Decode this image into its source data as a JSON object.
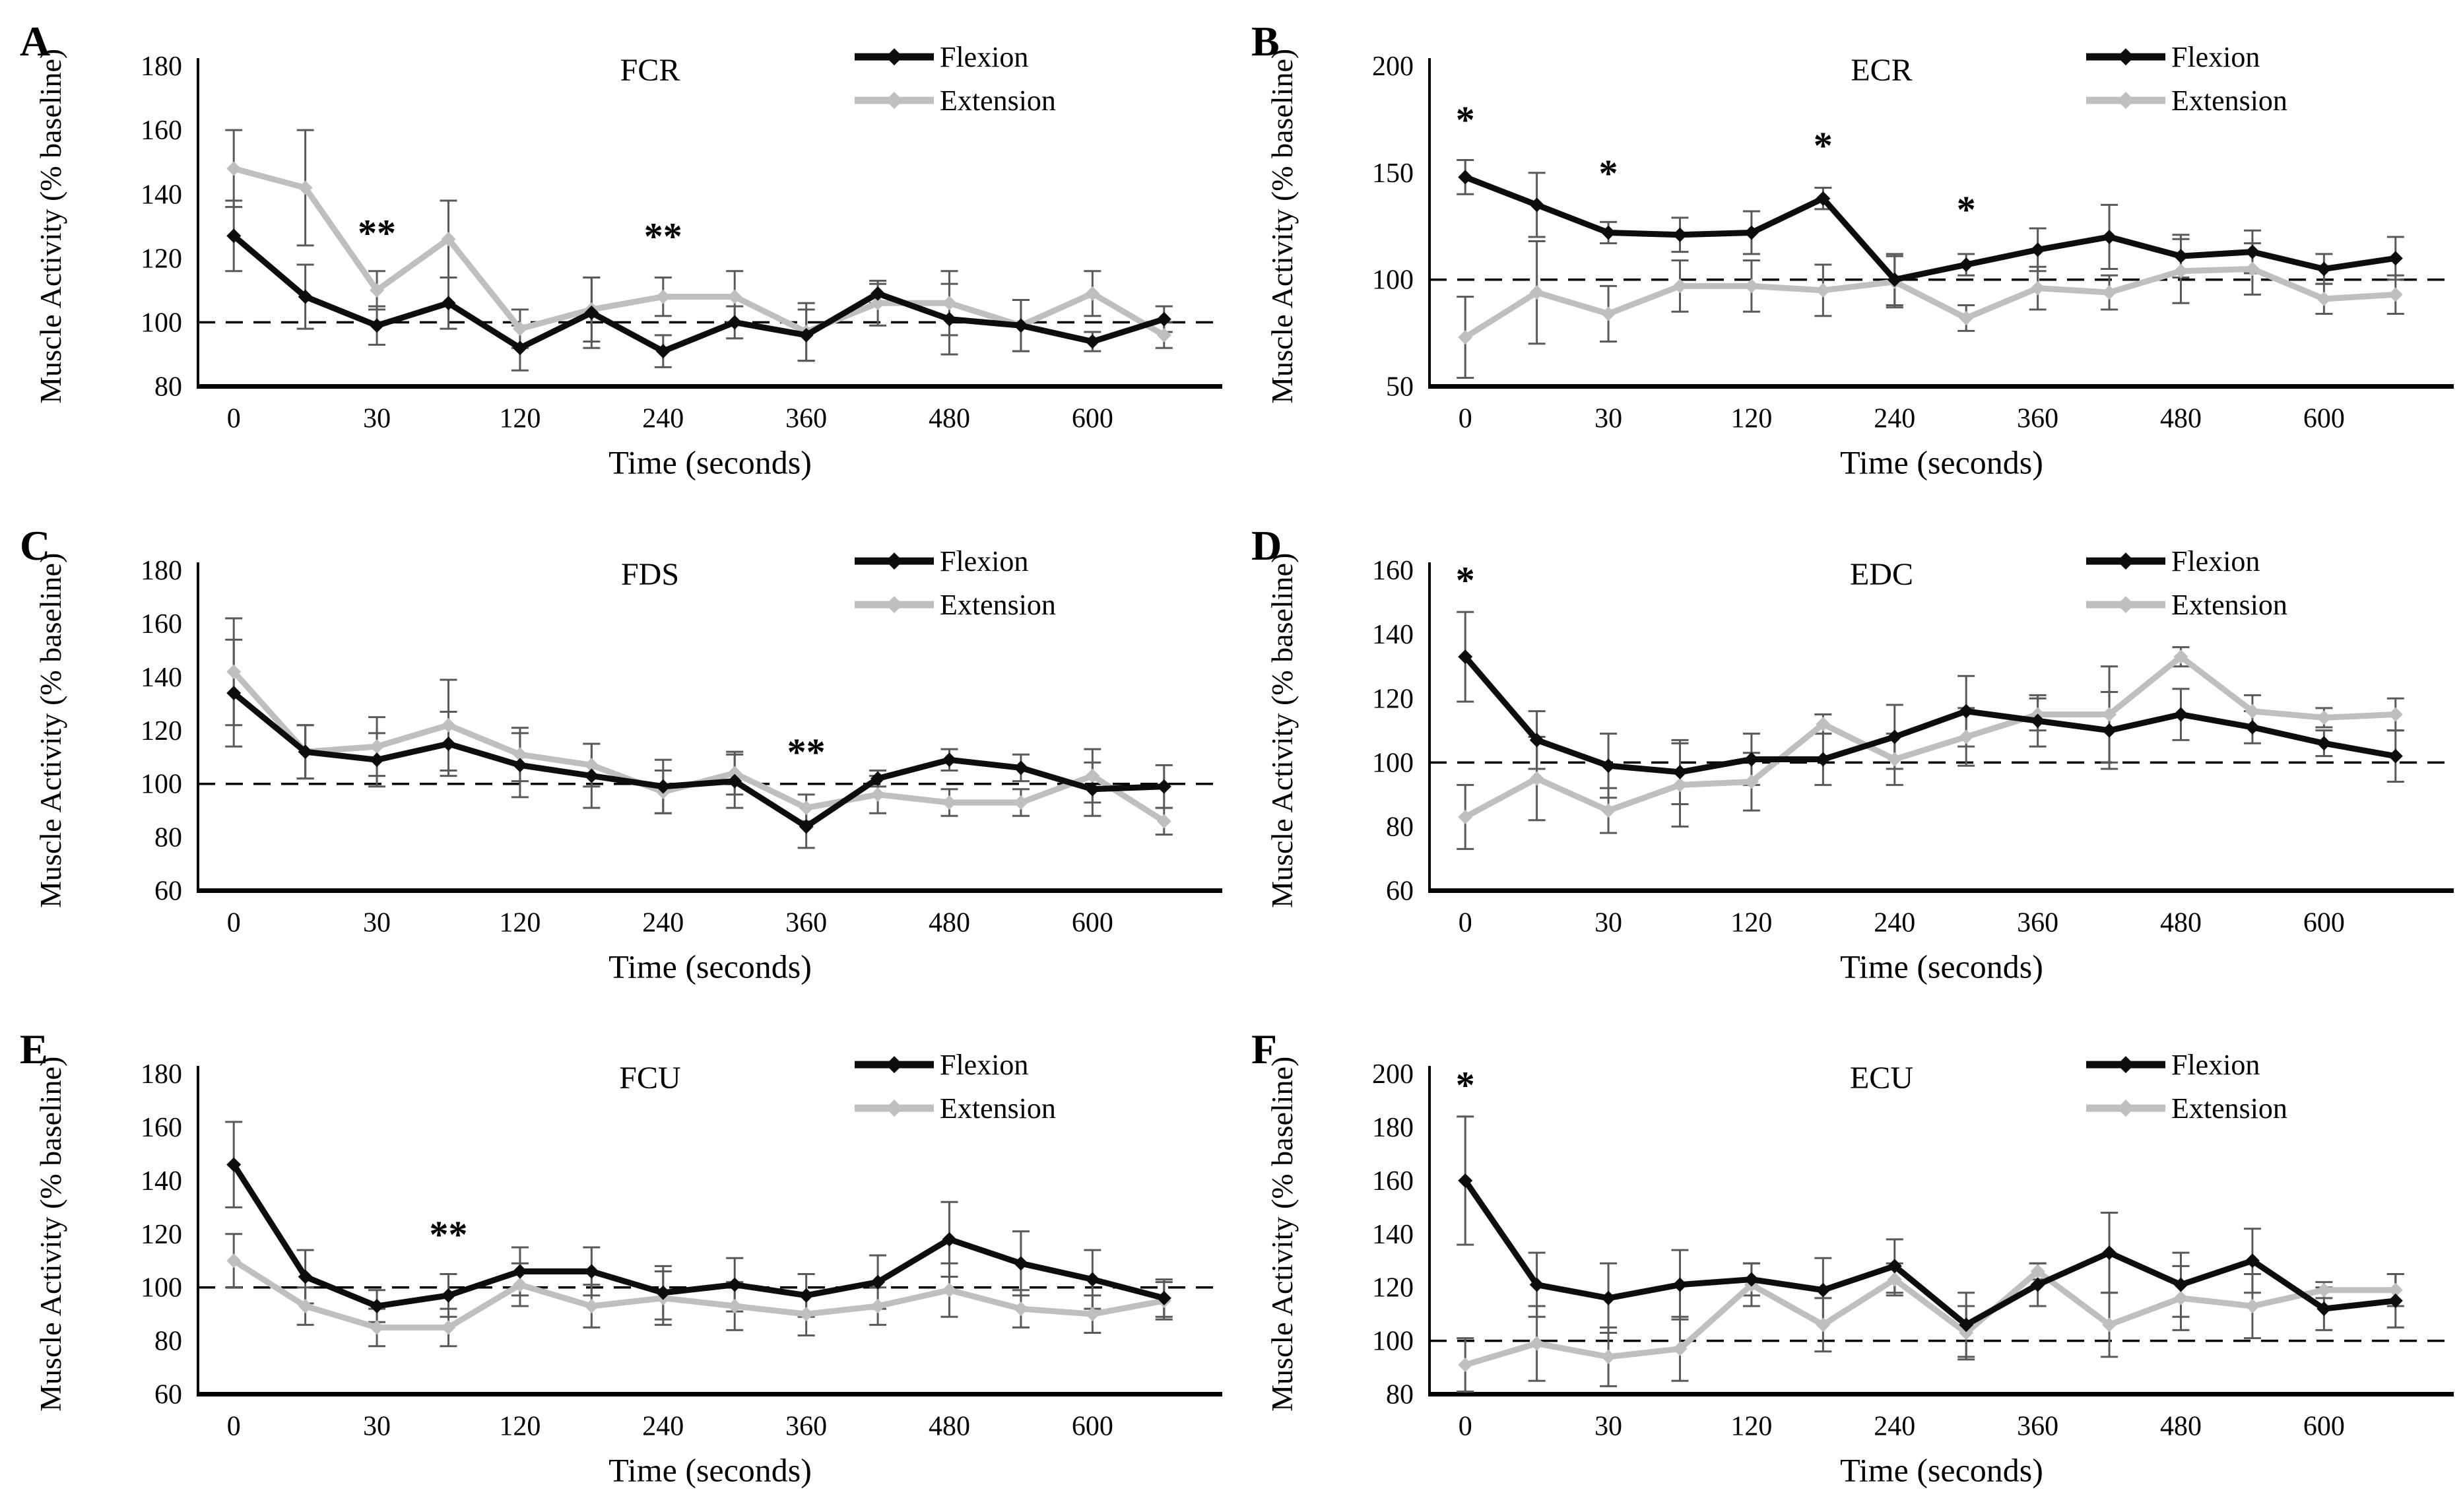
{
  "figure": {
    "background": "#ffffff",
    "legend": {
      "entries": [
        "Flexion",
        "Extension"
      ],
      "position": "top-right"
    },
    "colors": {
      "flexion": "#0d0d0d",
      "extension": "#bfbfbf",
      "error_bar": "#595959",
      "axis": "#000000",
      "baseline_dash": "#000000"
    },
    "axis": {
      "xlabel": "Time (seconds)",
      "ylabel": "Muscle Activity (% baseline)",
      "xtick_labels": [
        "0",
        "30",
        "120",
        "240",
        "360",
        "480",
        "600"
      ],
      "xtick_indices": [
        0,
        2,
        4,
        6,
        8,
        10,
        12
      ]
    }
  },
  "chart_data": [
    {
      "type": "line",
      "panel": "A",
      "title": "FCR",
      "xlabel": "Time (seconds)",
      "ylabel": "Muscle Activity (% baseline)",
      "x": [
        0,
        15,
        30,
        60,
        120,
        180,
        240,
        300,
        360,
        420,
        480,
        540,
        600,
        660
      ],
      "ylim": [
        80,
        180
      ],
      "yticks": [
        80,
        100,
        120,
        140,
        160,
        180
      ],
      "baseline": 100,
      "grid": false,
      "series": [
        {
          "name": "Extension",
          "values": [
            148,
            142,
            110,
            126,
            98,
            104,
            108,
            108,
            97,
            106,
            106,
            99,
            109,
            96
          ],
          "errors": [
            12,
            18,
            6,
            12,
            6,
            10,
            6,
            8,
            9,
            7,
            10,
            8,
            7,
            4
          ]
        },
        {
          "name": "Flexion",
          "values": [
            127,
            108,
            99,
            106,
            92,
            103,
            91,
            100,
            96,
            109,
            101,
            99,
            94,
            101
          ],
          "errors": [
            11,
            10,
            6,
            8,
            7,
            11,
            5,
            5,
            8,
            3,
            11,
            8,
            3,
            4
          ]
        }
      ],
      "annotations": [
        {
          "text": "**",
          "index": 2,
          "y": 128
        },
        {
          "text": "**",
          "index": 6,
          "y": 127
        }
      ]
    },
    {
      "type": "line",
      "panel": "B",
      "title": "ECR",
      "xlabel": "Time (seconds)",
      "ylabel": "Muscle Activity (% baseline)",
      "x": [
        0,
        15,
        30,
        60,
        120,
        180,
        240,
        300,
        360,
        420,
        480,
        540,
        600,
        660
      ],
      "ylim": [
        50,
        200
      ],
      "yticks": [
        50,
        100,
        150,
        200
      ],
      "baseline": 100,
      "grid": false,
      "series": [
        {
          "name": "Extension",
          "values": [
            73,
            94,
            84,
            97,
            97,
            95,
            99,
            82,
            96,
            94,
            104,
            105,
            91,
            93
          ],
          "errors": [
            19,
            24,
            13,
            12,
            12,
            12,
            12,
            6,
            10,
            8,
            15,
            12,
            7,
            9
          ]
        },
        {
          "name": "Flexion",
          "values": [
            148,
            135,
            122,
            121,
            122,
            138,
            100,
            107,
            114,
            120,
            111,
            113,
            105,
            110
          ],
          "errors": [
            8,
            15,
            5,
            8,
            10,
            5,
            12,
            5,
            10,
            15,
            10,
            10,
            7,
            10
          ]
        }
      ],
      "annotations": [
        {
          "text": "*",
          "index": 0,
          "y": 175
        },
        {
          "text": "*",
          "index": 2,
          "y": 150
        },
        {
          "text": "*",
          "index": 5,
          "y": 163
        },
        {
          "text": "*",
          "index": 7,
          "y": 133
        }
      ]
    },
    {
      "type": "line",
      "panel": "C",
      "title": "FDS",
      "xlabel": "Time (seconds)",
      "ylabel": "Muscle Activity (% baseline)",
      "x": [
        0,
        15,
        30,
        60,
        120,
        180,
        240,
        300,
        360,
        420,
        480,
        540,
        600,
        660
      ],
      "ylim": [
        60,
        180
      ],
      "yticks": [
        60,
        80,
        100,
        120,
        140,
        160,
        180
      ],
      "baseline": 100,
      "grid": false,
      "series": [
        {
          "name": "Extension",
          "values": [
            142,
            112,
            114,
            122,
            111,
            107,
            97,
            104,
            91,
            96,
            93,
            93,
            103,
            86
          ],
          "errors": [
            20,
            10,
            11,
            17,
            10,
            8,
            8,
            8,
            5,
            7,
            5,
            5,
            10,
            5
          ]
        },
        {
          "name": "Flexion",
          "values": [
            134,
            112,
            109,
            115,
            107,
            103,
            99,
            101,
            84,
            102,
            109,
            106,
            98,
            99
          ],
          "errors": [
            20,
            10,
            10,
            12,
            12,
            12,
            10,
            10,
            8,
            3,
            4,
            5,
            10,
            8
          ]
        }
      ],
      "annotations": [
        {
          "text": "**",
          "index": 8,
          "y": 112
        }
      ]
    },
    {
      "type": "line",
      "panel": "D",
      "title": "EDC",
      "xlabel": "Time (seconds)",
      "ylabel": "Muscle Activity (% baseline)",
      "x": [
        0,
        15,
        30,
        60,
        120,
        180,
        240,
        300,
        360,
        420,
        480,
        540,
        600,
        660
      ],
      "ylim": [
        60,
        160
      ],
      "yticks": [
        60,
        80,
        100,
        120,
        140,
        160
      ],
      "baseline": 100,
      "grid": false,
      "series": [
        {
          "name": "Extension",
          "values": [
            83,
            95,
            85,
            93,
            94,
            112,
            101,
            108,
            115,
            115,
            133,
            116,
            114,
            115
          ],
          "errors": [
            10,
            13,
            7,
            13,
            9,
            3,
            8,
            9,
            5,
            15,
            3,
            5,
            3,
            5
          ]
        },
        {
          "name": "Flexion",
          "values": [
            133,
            107,
            99,
            97,
            101,
            101,
            108,
            116,
            113,
            110,
            115,
            111,
            106,
            102
          ],
          "errors": [
            14,
            9,
            10,
            10,
            8,
            8,
            10,
            11,
            8,
            12,
            8,
            5,
            4,
            8
          ]
        }
      ],
      "annotations": [
        {
          "text": "*",
          "index": 0,
          "y": 157
        }
      ]
    },
    {
      "type": "line",
      "panel": "E",
      "title": "FCU",
      "xlabel": "Time (seconds)",
      "ylabel": "Muscle Activity (% baseline)",
      "x": [
        0,
        15,
        30,
        60,
        120,
        180,
        240,
        300,
        360,
        420,
        480,
        540,
        600,
        660
      ],
      "ylim": [
        60,
        180
      ],
      "yticks": [
        60,
        80,
        100,
        120,
        140,
        160,
        180
      ],
      "baseline": 100,
      "grid": false,
      "series": [
        {
          "name": "Extension",
          "values": [
            110,
            93,
            85,
            85,
            101,
            93,
            96,
            93,
            90,
            93,
            99,
            92,
            90,
            95
          ],
          "errors": [
            10,
            7,
            7,
            7,
            8,
            8,
            10,
            9,
            8,
            7,
            10,
            7,
            7,
            7
          ]
        },
        {
          "name": "Flexion",
          "values": [
            146,
            104,
            93,
            97,
            106,
            106,
            98,
            101,
            97,
            102,
            118,
            109,
            103,
            96
          ],
          "errors": [
            16,
            10,
            6,
            8,
            9,
            9,
            10,
            10,
            8,
            10,
            14,
            12,
            11,
            7
          ]
        }
      ],
      "annotations": [
        {
          "text": "**",
          "index": 3,
          "y": 120
        }
      ]
    },
    {
      "type": "line",
      "panel": "F",
      "title": "ECU",
      "xlabel": "Time (seconds)",
      "ylabel": "Muscle Activity (% baseline)",
      "x": [
        0,
        15,
        30,
        60,
        120,
        180,
        240,
        300,
        360,
        420,
        480,
        540,
        600,
        660
      ],
      "ylim": [
        80,
        200
      ],
      "yticks": [
        80,
        100,
        120,
        140,
        160,
        180,
        200
      ],
      "baseline": 100,
      "grid": false,
      "series": [
        {
          "name": "Extension",
          "values": [
            91,
            99,
            94,
            97,
            121,
            106,
            123,
            103,
            126,
            106,
            116,
            113,
            119,
            119
          ],
          "errors": [
            10,
            14,
            11,
            12,
            8,
            10,
            6,
            10,
            3,
            12,
            12,
            12,
            3,
            6
          ]
        },
        {
          "name": "Flexion",
          "values": [
            160,
            121,
            116,
            121,
            123,
            119,
            128,
            106,
            121,
            133,
            121,
            130,
            112,
            115
          ],
          "errors": [
            24,
            12,
            13,
            13,
            6,
            12,
            10,
            12,
            8,
            15,
            12,
            12,
            8,
            10
          ]
        }
      ],
      "annotations": [
        {
          "text": "*",
          "index": 0,
          "y": 196
        }
      ]
    }
  ]
}
